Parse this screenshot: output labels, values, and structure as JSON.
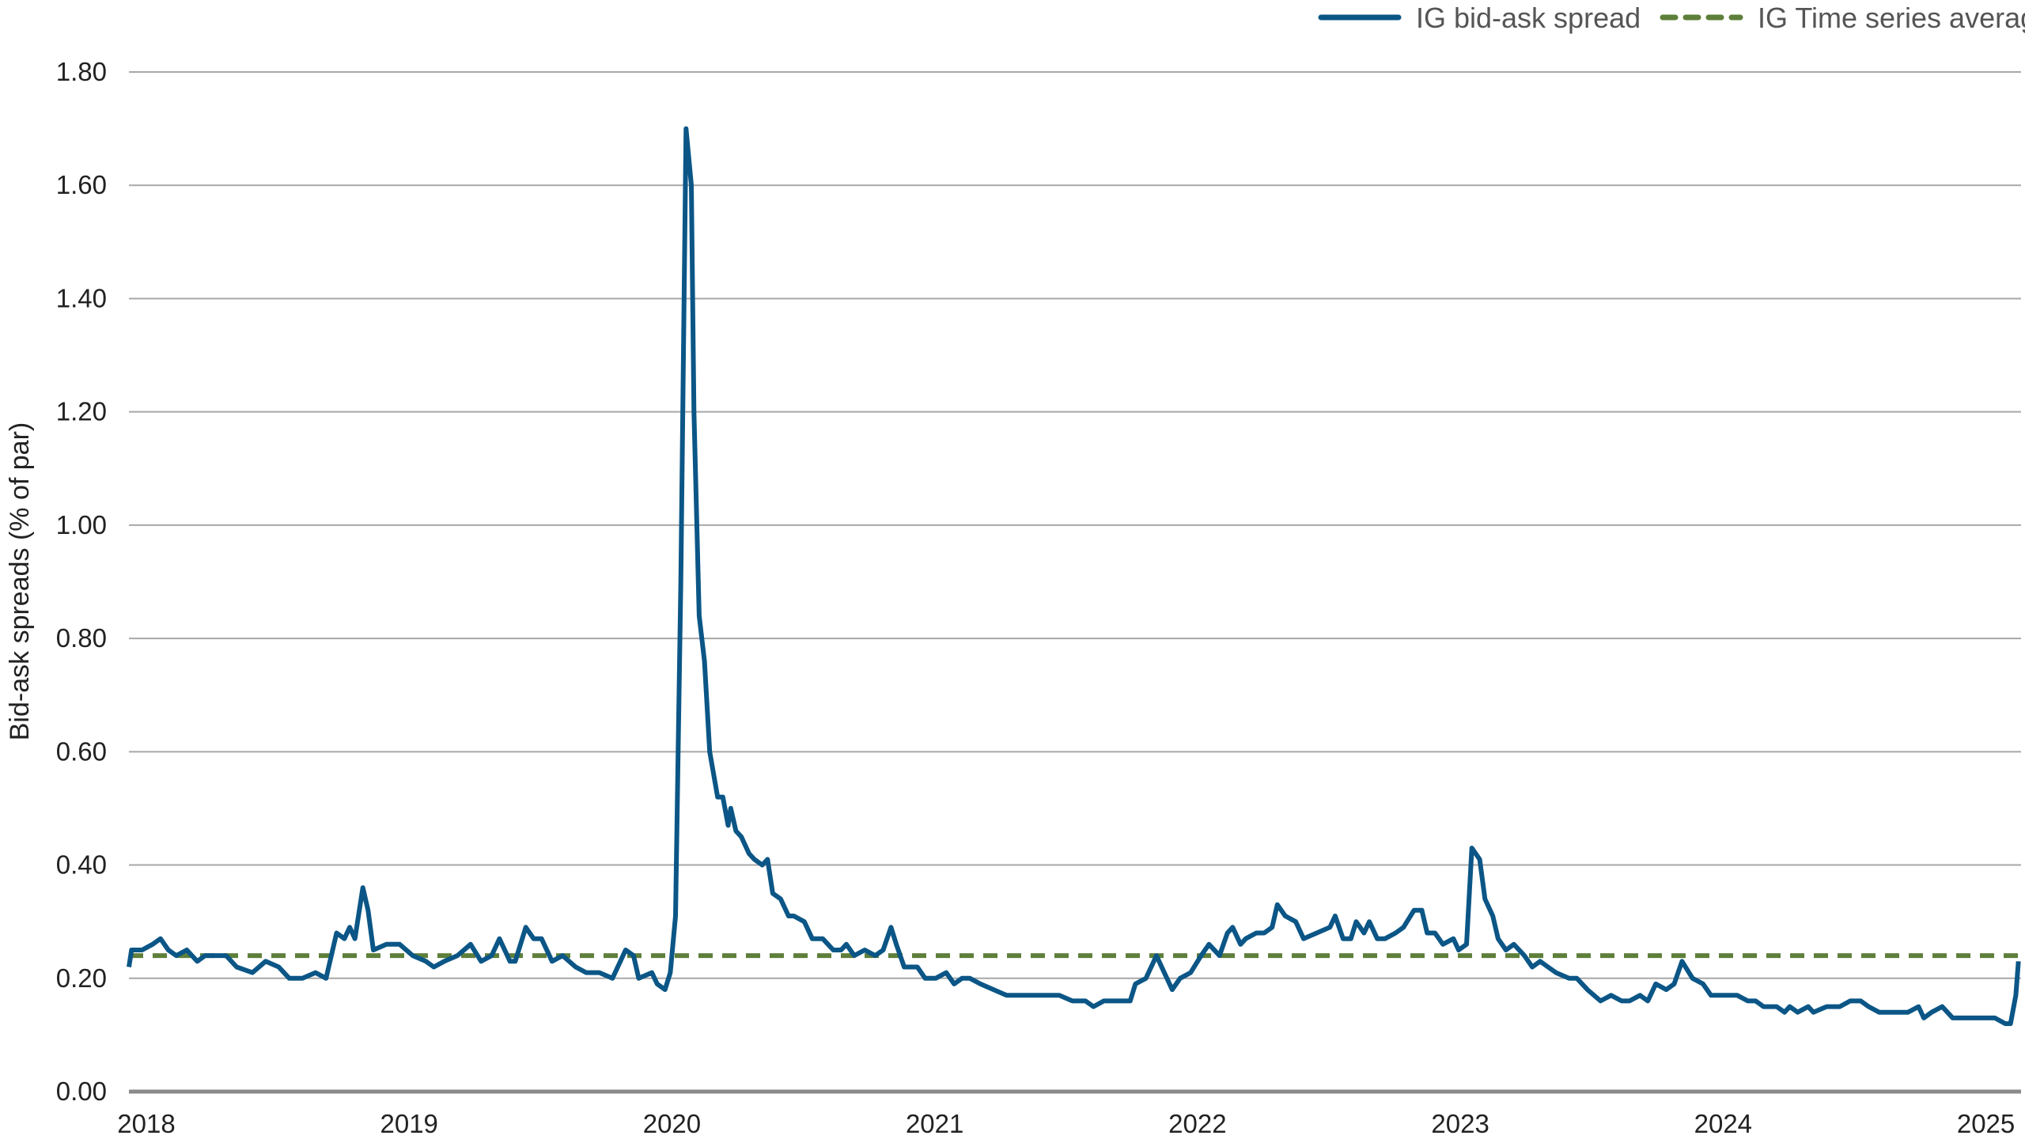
{
  "chart_data": {
    "type": "line",
    "title": "",
    "xlabel": "",
    "ylabel": "Bid-ask spreads (% of par)",
    "xlim": [
      2018.0,
      2025.2
    ],
    "ylim": [
      0,
      1.8
    ],
    "x_ticks": [
      "2018",
      "2019",
      "2020",
      "2021",
      "2022",
      "2023",
      "2024",
      "2025"
    ],
    "y_ticks": [
      "0.00",
      "0.20",
      "0.40",
      "0.60",
      "0.80",
      "1.00",
      "1.20",
      "1.40",
      "1.60",
      "1.80"
    ],
    "grid": "horizontal",
    "legend_position": "top-right",
    "series": [
      {
        "name": "IG bid-ask spread",
        "color": "#0b5686",
        "style": "solid",
        "x": [
          2018.0,
          2018.01,
          2018.05,
          2018.09,
          2018.12,
          2018.15,
          2018.18,
          2018.22,
          2018.26,
          2018.29,
          2018.33,
          2018.37,
          2018.41,
          2018.47,
          2018.52,
          2018.57,
          2018.61,
          2018.66,
          2018.71,
          2018.75,
          2018.79,
          2018.82,
          2018.84,
          2018.86,
          2018.89,
          2018.91,
          2018.93,
          2018.98,
          2019.03,
          2019.08,
          2019.13,
          2019.16,
          2019.2,
          2019.25,
          2019.3,
          2019.34,
          2019.38,
          2019.41,
          2019.45,
          2019.47,
          2019.51,
          2019.54,
          2019.57,
          2019.61,
          2019.65,
          2019.7,
          2019.74,
          2019.79,
          2019.84,
          2019.89,
          2019.92,
          2019.94,
          2019.99,
          2020.01,
          2020.04,
          2020.06,
          2020.08,
          2020.1,
          2020.12,
          2020.14,
          2020.15,
          2020.17,
          2020.19,
          2020.21,
          2020.24,
          2020.26,
          2020.28,
          2020.29,
          2020.31,
          2020.33,
          2020.36,
          2020.38,
          2020.41,
          2020.43,
          2020.45,
          2020.48,
          2020.51,
          2020.53,
          2020.57,
          2020.6,
          2020.64,
          2020.68,
          2020.71,
          2020.73,
          2020.76,
          2020.8,
          2020.84,
          2020.87,
          2020.9,
          2020.92,
          2020.95,
          2021.0,
          2021.03,
          2021.07,
          2021.11,
          2021.14,
          2021.17,
          2021.2,
          2021.24,
          2021.29,
          2021.34,
          2021.39,
          2021.44,
          2021.49,
          2021.54,
          2021.59,
          2021.64,
          2021.67,
          2021.71,
          2021.76,
          2021.81,
          2021.83,
          2021.87,
          2021.91,
          2021.93,
          2021.97,
          2022.0,
          2022.04,
          2022.08,
          2022.11,
          2022.15,
          2022.18,
          2022.2,
          2022.23,
          2022.25,
          2022.29,
          2022.32,
          2022.35,
          2022.37,
          2022.4,
          2022.44,
          2022.47,
          2022.52,
          2022.57,
          2022.59,
          2022.62,
          2022.65,
          2022.67,
          2022.7,
          2022.72,
          2022.75,
          2022.78,
          2022.82,
          2022.85,
          2022.89,
          2022.92,
          2022.94,
          2022.97,
          2023.0,
          2023.04,
          2023.06,
          2023.09,
          2023.11,
          2023.14,
          2023.16,
          2023.19,
          2023.21,
          2023.24,
          2023.27,
          2023.31,
          2023.34,
          2023.37,
          2023.4,
          2023.43,
          2023.48,
          2023.51,
          2023.55,
          2023.6,
          2023.64,
          2023.68,
          2023.71,
          2023.75,
          2023.78,
          2023.81,
          2023.85,
          2023.88,
          2023.91,
          2023.95,
          2023.99,
          2024.02,
          2024.07,
          2024.12,
          2024.16,
          2024.19,
          2024.22,
          2024.27,
          2024.3,
          2024.32,
          2024.35,
          2024.39,
          2024.41,
          2024.46,
          2024.51,
          2024.55,
          2024.59,
          2024.62,
          2024.66,
          2024.7,
          2024.73,
          2024.77,
          2024.81,
          2024.83,
          2024.86,
          2024.9,
          2024.94,
          2024.98,
          2025.02,
          2025.06,
          2025.1,
          2025.14,
          2025.16,
          2025.18,
          2025.19
        ],
        "y": [
          0.22,
          0.25,
          0.25,
          0.26,
          0.27,
          0.25,
          0.24,
          0.25,
          0.23,
          0.24,
          0.24,
          0.24,
          0.22,
          0.21,
          0.23,
          0.22,
          0.2,
          0.2,
          0.21,
          0.2,
          0.28,
          0.27,
          0.29,
          0.27,
          0.36,
          0.32,
          0.25,
          0.26,
          0.26,
          0.24,
          0.23,
          0.22,
          0.23,
          0.24,
          0.26,
          0.23,
          0.24,
          0.27,
          0.23,
          0.23,
          0.29,
          0.27,
          0.27,
          0.23,
          0.24,
          0.22,
          0.21,
          0.21,
          0.2,
          0.25,
          0.24,
          0.2,
          0.21,
          0.19,
          0.18,
          0.21,
          0.31,
          0.9,
          1.7,
          1.6,
          1.2,
          0.84,
          0.76,
          0.6,
          0.52,
          0.52,
          0.47,
          0.5,
          0.46,
          0.45,
          0.42,
          0.41,
          0.4,
          0.41,
          0.35,
          0.34,
          0.31,
          0.31,
          0.3,
          0.27,
          0.27,
          0.25,
          0.25,
          0.26,
          0.24,
          0.25,
          0.24,
          0.25,
          0.29,
          0.26,
          0.22,
          0.22,
          0.2,
          0.2,
          0.21,
          0.19,
          0.2,
          0.2,
          0.19,
          0.18,
          0.17,
          0.17,
          0.17,
          0.17,
          0.17,
          0.16,
          0.16,
          0.15,
          0.16,
          0.16,
          0.16,
          0.19,
          0.2,
          0.24,
          0.22,
          0.18,
          0.2,
          0.21,
          0.24,
          0.26,
          0.24,
          0.28,
          0.29,
          0.26,
          0.27,
          0.28,
          0.28,
          0.29,
          0.33,
          0.31,
          0.3,
          0.27,
          0.28,
          0.29,
          0.31,
          0.27,
          0.27,
          0.3,
          0.28,
          0.3,
          0.27,
          0.27,
          0.28,
          0.29,
          0.32,
          0.32,
          0.28,
          0.28,
          0.26,
          0.27,
          0.25,
          0.26,
          0.43,
          0.41,
          0.34,
          0.31,
          0.27,
          0.25,
          0.26,
          0.24,
          0.22,
          0.23,
          0.22,
          0.21,
          0.2,
          0.2,
          0.18,
          0.16,
          0.17,
          0.16,
          0.16,
          0.17,
          0.16,
          0.19,
          0.18,
          0.19,
          0.23,
          0.2,
          0.19,
          0.17,
          0.17,
          0.17,
          0.16,
          0.16,
          0.15,
          0.15,
          0.14,
          0.15,
          0.14,
          0.15,
          0.14,
          0.15,
          0.15,
          0.16,
          0.16,
          0.15,
          0.14,
          0.14,
          0.14,
          0.14,
          0.15,
          0.13,
          0.14,
          0.15,
          0.13,
          0.13,
          0.13,
          0.13,
          0.13,
          0.12,
          0.12,
          0.17,
          0.23
        ]
      },
      {
        "name": "IG Time series average",
        "color": "#5e7f3a",
        "style": "dashed",
        "value": 0.24
      }
    ]
  }
}
